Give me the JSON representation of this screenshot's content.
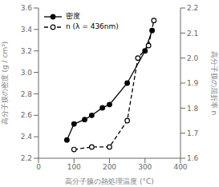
{
  "chart_data": {
    "type": "line",
    "xlabel": "高分子膜の熱処理温度 (°C)",
    "ylabel": "高分子膜の密度  (g / cm³)",
    "y2label": "高分子膜の屈折率  n",
    "xlim": [
      0,
      400
    ],
    "xticks": [
      0,
      100,
      200,
      300,
      400
    ],
    "ylim": [
      2.2,
      3.6
    ],
    "yticks": [
      2.2,
      2.4,
      2.6,
      2.8,
      {
        "value": 3.0,
        "label": "3.0"
      },
      3.2,
      3.4,
      3.6
    ],
    "y2lim": [
      1.6,
      2.2
    ],
    "y2ticks": [
      1.6,
      1.7,
      1.8,
      1.9,
      {
        "value": 2.0,
        "label": "2.0"
      },
      2.1,
      2.2
    ],
    "grid": false,
    "legend": "upper left",
    "series": [
      {
        "name": "密度",
        "color": "#000000",
        "marker": "circle",
        "line_style": "solid",
        "x": [
          80,
          100,
          130,
          150,
          180,
          200,
          250,
          300,
          320
        ],
        "values": [
          2.37,
          2.52,
          2.56,
          2.6,
          2.67,
          2.7,
          2.9,
          3.2,
          3.39
        ]
      },
      {
        "name": "n (λ = 436nm)",
        "color": "#000000",
        "marker": "open_circle",
        "line_style": "dashed",
        "axis": "y2",
        "x": [
          100,
          150,
          200,
          250,
          280,
          310,
          325
        ],
        "values": [
          1.635,
          1.645,
          1.645,
          1.75,
          2.0,
          2.05,
          2.15
        ]
      }
    ]
  }
}
